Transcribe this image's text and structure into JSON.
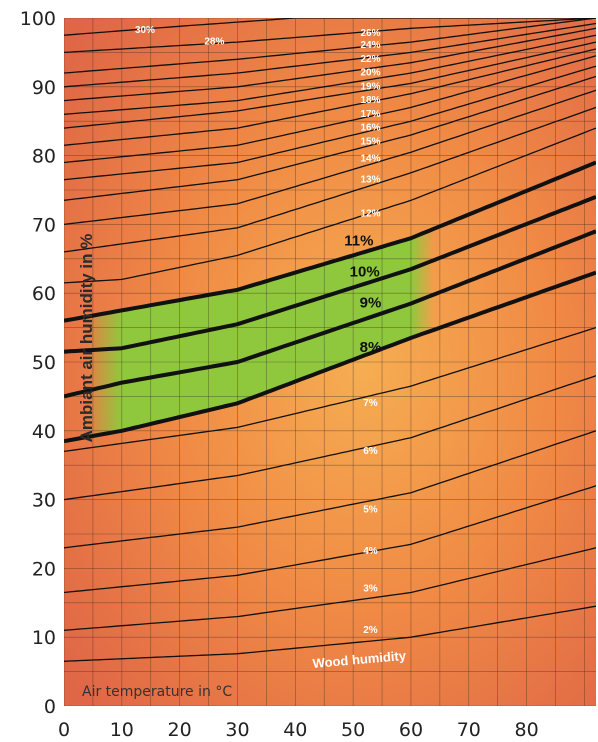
{
  "chart_data": {
    "type": "line",
    "xlabel": "Air temperature in °C",
    "ylabel": "Ambiant air humidity in %",
    "xlim": [
      0,
      92
    ],
    "ylim": [
      0,
      100
    ],
    "x_ticks": [
      "0",
      "10",
      "20",
      "30",
      "40",
      "50",
      "60",
      "70",
      "80"
    ],
    "y_ticks": [
      "0",
      "10",
      "20",
      "30",
      "40",
      "50",
      "60",
      "70",
      "80",
      "90",
      "100"
    ],
    "grid": true,
    "annotation": "Wood humidity",
    "optimal_zone": {
      "x_range": [
        10,
        60
      ],
      "min_wood_humidity": "8%",
      "max_wood_humidity": "11%"
    },
    "series": [
      {
        "name": "2%",
        "highlight": false,
        "x": [
          0,
          30,
          60,
          92
        ],
        "y": [
          6.5,
          7.6,
          10,
          14.5
        ]
      },
      {
        "name": "3%",
        "highlight": false,
        "x": [
          0,
          30,
          60,
          92
        ],
        "y": [
          11,
          13,
          16.5,
          23
        ]
      },
      {
        "name": "4%",
        "highlight": false,
        "x": [
          0,
          30,
          60,
          92
        ],
        "y": [
          16.5,
          19,
          23.5,
          32
        ]
      },
      {
        "name": "5%",
        "highlight": false,
        "x": [
          0,
          30,
          60,
          92
        ],
        "y": [
          23,
          26,
          31,
          40
        ]
      },
      {
        "name": "6%",
        "highlight": false,
        "x": [
          0,
          30,
          60,
          92
        ],
        "y": [
          30,
          33.5,
          39,
          48
        ]
      },
      {
        "name": "7%",
        "highlight": false,
        "x": [
          0,
          30,
          60,
          92
        ],
        "y": [
          37,
          40.5,
          46.5,
          55
        ]
      },
      {
        "name": "8%",
        "highlight": true,
        "x": [
          0,
          10,
          30,
          60,
          92
        ],
        "y": [
          38.5,
          40,
          44,
          53.5,
          63
        ]
      },
      {
        "name": "9%",
        "highlight": true,
        "x": [
          0,
          10,
          30,
          60,
          92
        ],
        "y": [
          45,
          47,
          50,
          58.5,
          69
        ]
      },
      {
        "name": "10%",
        "highlight": true,
        "x": [
          0,
          10,
          30,
          60,
          92
        ],
        "y": [
          51.5,
          52,
          55.5,
          63.5,
          74
        ]
      },
      {
        "name": "11%",
        "highlight": true,
        "x": [
          0,
          10,
          30,
          60,
          92
        ],
        "y": [
          56,
          57.5,
          60.5,
          68,
          79
        ]
      },
      {
        "name": "12%",
        "highlight": false,
        "x": [
          0,
          10,
          30,
          60,
          92
        ],
        "y": [
          61.5,
          62,
          65.5,
          73.5,
          84
        ]
      },
      {
        "name": "13%",
        "highlight": false,
        "x": [
          0,
          30,
          60,
          92
        ],
        "y": [
          66,
          69.5,
          77.5,
          87
        ]
      },
      {
        "name": "14%",
        "highlight": false,
        "x": [
          0,
          30,
          60,
          92
        ],
        "y": [
          70,
          73,
          80.5,
          89.5
        ]
      },
      {
        "name": "15%",
        "highlight": false,
        "x": [
          0,
          30,
          60,
          92
        ],
        "y": [
          73.5,
          76.5,
          83,
          91.5
        ]
      },
      {
        "name": "16%",
        "highlight": false,
        "x": [
          0,
          30,
          60,
          92
        ],
        "y": [
          76.5,
          79,
          85,
          93
        ]
      },
      {
        "name": "17%",
        "highlight": false,
        "x": [
          0,
          30,
          60,
          92
        ],
        "y": [
          79,
          81.5,
          87,
          94.5
        ]
      },
      {
        "name": "18%",
        "highlight": false,
        "x": [
          0,
          30,
          60,
          92
        ],
        "y": [
          81.5,
          84,
          89,
          95.5
        ]
      },
      {
        "name": "19%",
        "highlight": false,
        "x": [
          0,
          30,
          60,
          92
        ],
        "y": [
          84,
          86.5,
          90.5,
          96.5
        ]
      },
      {
        "name": "20%",
        "highlight": false,
        "x": [
          0,
          30,
          60,
          92
        ],
        "y": [
          86,
          88,
          92,
          97.5
        ]
      },
      {
        "name": "22%",
        "highlight": false,
        "x": [
          0,
          30,
          60,
          92
        ],
        "y": [
          88,
          90,
          93.5,
          98.5
        ]
      },
      {
        "name": "24%",
        "highlight": false,
        "x": [
          0,
          30,
          60,
          92
        ],
        "y": [
          90,
          92,
          95,
          99.2
        ]
      },
      {
        "name": "26%",
        "highlight": false,
        "x": [
          0,
          30,
          60,
          92
        ],
        "y": [
          92,
          94,
          96.5,
          100
        ]
      },
      {
        "name": "28%",
        "highlight": false,
        "x": [
          0,
          30,
          60,
          92
        ],
        "y": [
          95,
          96.5,
          98.5,
          100
        ]
      },
      {
        "name": "30%",
        "highlight": false,
        "x": [
          0,
          20,
          40,
          92
        ],
        "y": [
          97.5,
          98.8,
          100,
          100
        ]
      }
    ],
    "labels": [
      {
        "text": "2%",
        "x": 53,
        "y": 11
      },
      {
        "text": "3%",
        "x": 53,
        "y": 17
      },
      {
        "text": "4%",
        "x": 53,
        "y": 22.5
      },
      {
        "text": "5%",
        "x": 53,
        "y": 28.5
      },
      {
        "text": "6%",
        "x": 53,
        "y": 37
      },
      {
        "text": "7%",
        "x": 53,
        "y": 44
      },
      {
        "text": "8%",
        "x": 53,
        "y": 52
      },
      {
        "text": "9%",
        "x": 53,
        "y": 58.5
      },
      {
        "text": "10%",
        "x": 52,
        "y": 63
      },
      {
        "text": "11%",
        "x": 51,
        "y": 67.5
      },
      {
        "text": "12%",
        "x": 53,
        "y": 71.5
      },
      {
        "text": "13%",
        "x": 53,
        "y": 76.5
      },
      {
        "text": "14%",
        "x": 53,
        "y": 79.5
      },
      {
        "text": "15%",
        "x": 53,
        "y": 82
      },
      {
        "text": "16%",
        "x": 53,
        "y": 84
      },
      {
        "text": "17%",
        "x": 53,
        "y": 86
      },
      {
        "text": "18%",
        "x": 53,
        "y": 88
      },
      {
        "text": "19%",
        "x": 53,
        "y": 90
      },
      {
        "text": "20%",
        "x": 53,
        "y": 92
      },
      {
        "text": "22%",
        "x": 53,
        "y": 94
      },
      {
        "text": "24%",
        "x": 53,
        "y": 96
      },
      {
        "text": "26%",
        "x": 53,
        "y": 97.8
      },
      {
        "text": "28%",
        "x": 26,
        "y": 96.5
      },
      {
        "text": "30%",
        "x": 14,
        "y": 98.2
      }
    ],
    "colors": {
      "edge": "#DF6647",
      "mid": "#F08A45",
      "core": "#F6AE52",
      "zone": "#8FC83C",
      "curve": "#111111",
      "grid": "#3a2a20"
    }
  }
}
